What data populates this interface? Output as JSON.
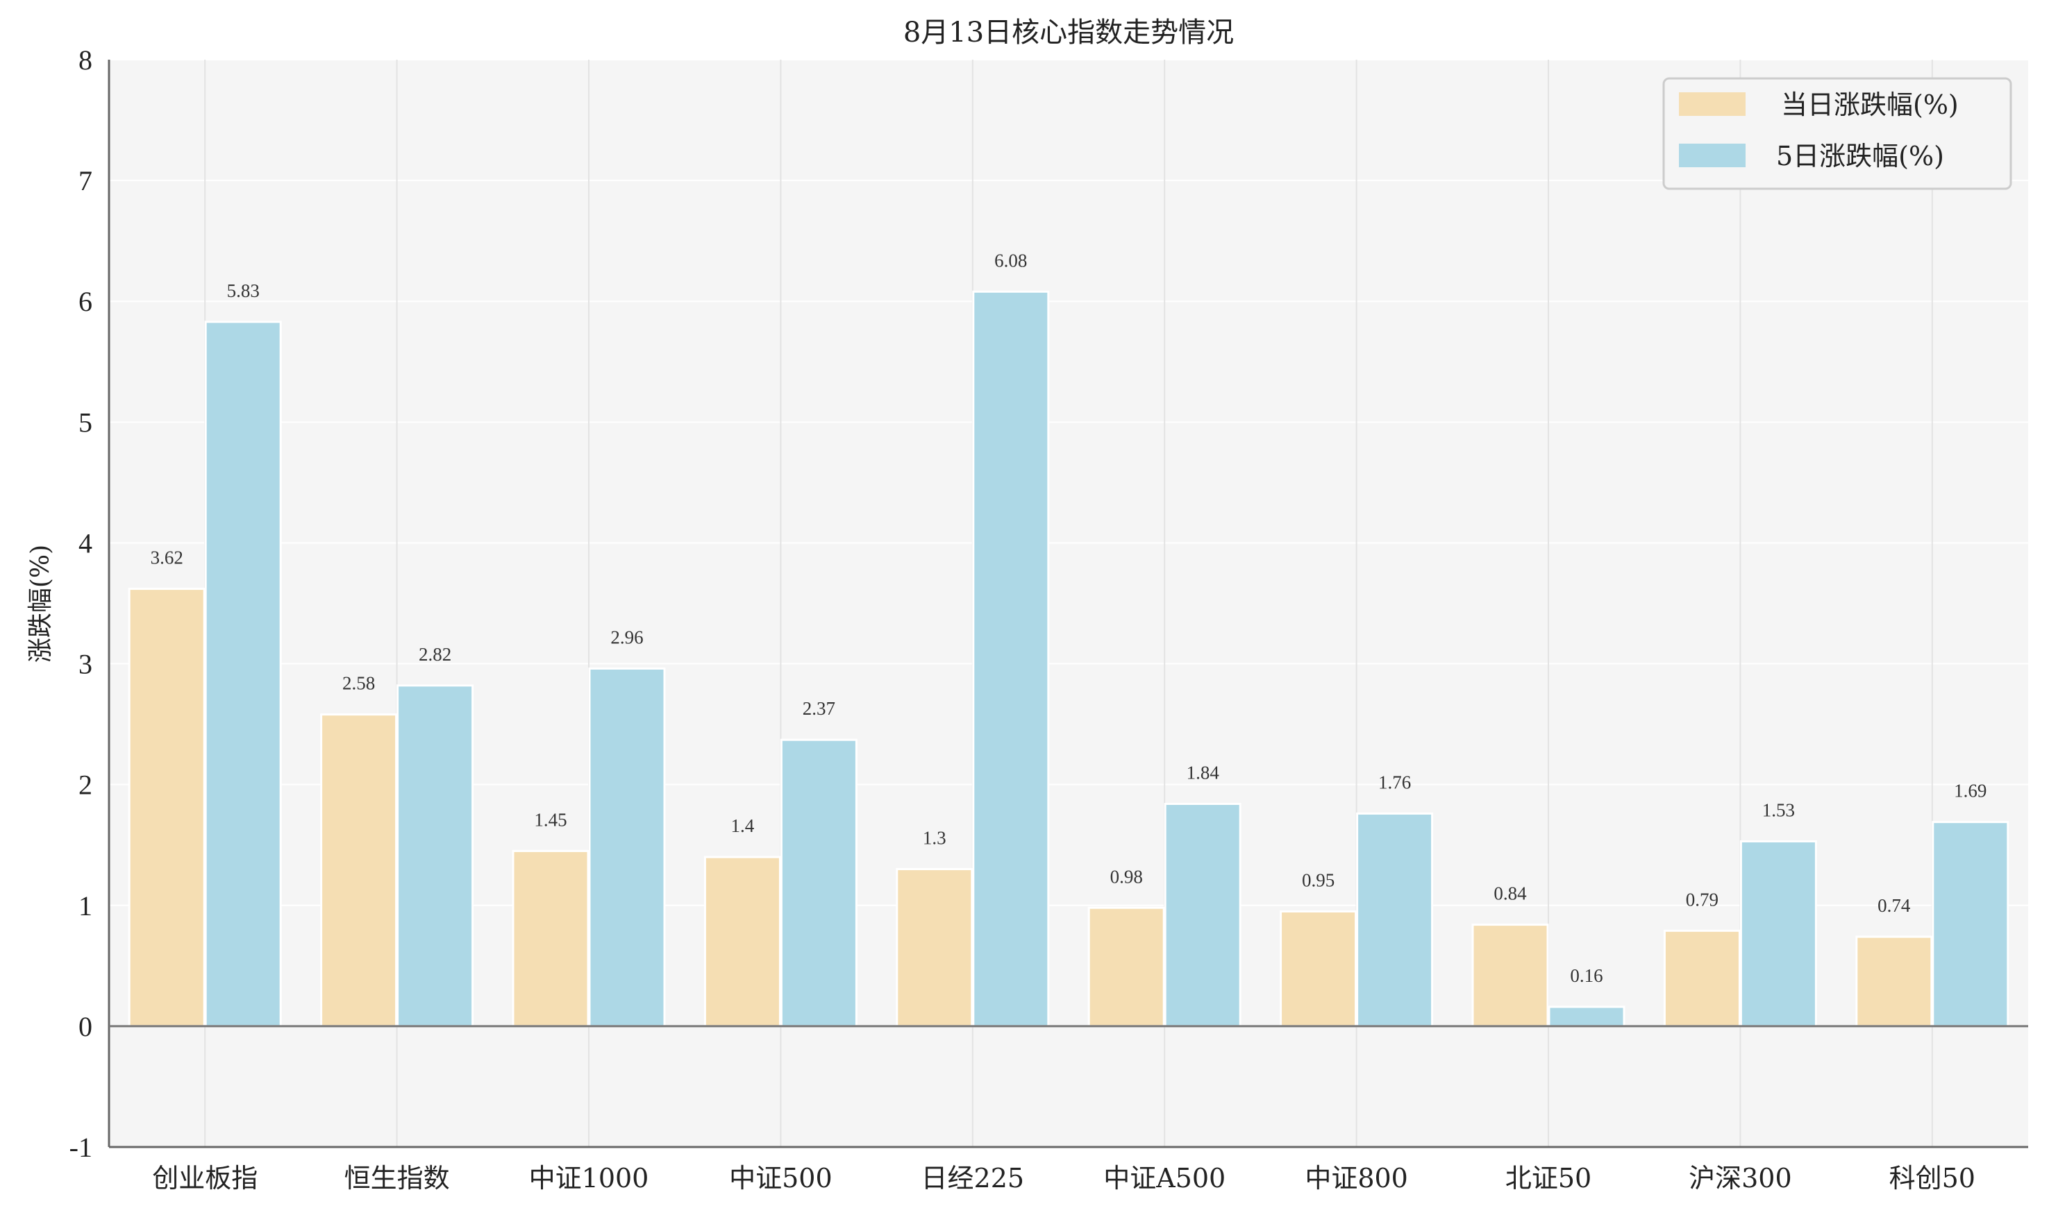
{
  "chart_data": {
    "type": "bar",
    "title": "8月13日核心指数走势情况",
    "ylabel": "涨跌幅(%)",
    "xlabel": "",
    "ylim": [
      -1,
      8
    ],
    "yticks": [
      -1,
      0,
      1,
      2,
      3,
      4,
      5,
      6,
      7,
      8
    ],
    "categories": [
      "创业板指",
      "恒生指数",
      "中证1000",
      "中证500",
      "日经225",
      "中证A500",
      "中证800",
      "北证50",
      "沪深300",
      "科创50"
    ],
    "series": [
      {
        "name": "当日涨跌幅(%)",
        "values": [
          3.62,
          2.58,
          1.45,
          1.4,
          1.3,
          0.98,
          0.95,
          0.84,
          0.79,
          0.74
        ],
        "labels": [
          "3.62",
          "2.58",
          "1.45",
          "1.4",
          "1.3",
          "0.98",
          "0.95",
          "0.84",
          "0.79",
          "0.74"
        ],
        "color": "#F5DEB3"
      },
      {
        "name": "5日涨跌幅(%)",
        "values": [
          5.83,
          2.82,
          2.96,
          2.37,
          6.08,
          1.84,
          1.76,
          0.16,
          1.53,
          1.69
        ],
        "labels": [
          "5.83",
          "2.82",
          "2.96",
          "2.37",
          "6.08",
          "1.84",
          "1.76",
          "0.16",
          "1.53",
          "1.69"
        ],
        "color": "#ADD8E6"
      }
    ],
    "grid": true,
    "legend_position": "top-right",
    "background_color": "#F5F5F5"
  }
}
